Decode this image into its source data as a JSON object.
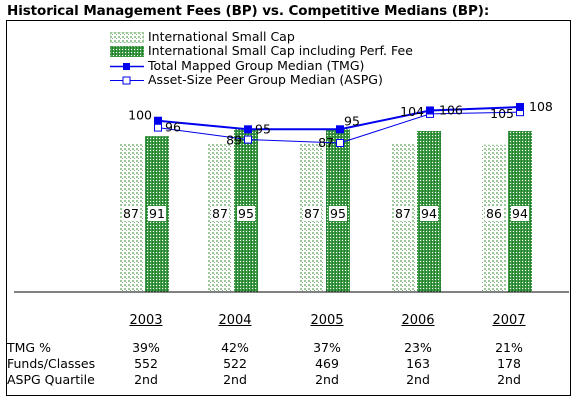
{
  "title": "Historical Management Fees (BP) vs. Competitive Medians (BP):",
  "legend": [
    {
      "label": "International Small Cap",
      "symbol": "pattern-light"
    },
    {
      "label": "International Small Cap including Perf. Fee",
      "symbol": "pattern-dark"
    },
    {
      "label": "Total Mapped Group Median (TMG)",
      "symbol": "line-filled"
    },
    {
      "label": "Asset-Size Peer Group Median (ASPG)",
      "symbol": "line-open"
    }
  ],
  "colors": {
    "bar_light": "#8fc28f",
    "bar_dark": "#2e8b3a",
    "line": "#0000ee"
  },
  "chart_data": {
    "type": "bar",
    "categories": [
      "2003",
      "2004",
      "2005",
      "2006",
      "2007"
    ],
    "series": [
      {
        "name": "International Small Cap",
        "kind": "bar",
        "values": [
          87,
          87,
          87,
          87,
          86
        ],
        "labels": [
          "87",
          "87",
          "87",
          "87",
          "86"
        ]
      },
      {
        "name": "International Small Cap including Perf. Fee",
        "kind": "bar",
        "values": [
          91,
          95,
          95,
          94,
          94
        ],
        "labels": [
          "91",
          "95",
          "95",
          "94",
          "94"
        ]
      },
      {
        "name": "Total Mapped Group Median (TMG)",
        "kind": "line",
        "values": [
          100,
          95,
          95,
          106,
          108
        ],
        "labels": [
          "100",
          "95",
          "95",
          "106",
          "108"
        ]
      },
      {
        "name": "Asset-Size Peer Group Median (ASPG)",
        "kind": "line",
        "values": [
          96,
          89,
          87,
          104,
          105
        ],
        "labels": [
          "96",
          "89",
          "87",
          "104",
          "105"
        ]
      }
    ],
    "ylim": [
      20,
      125
    ],
    "grid": false
  },
  "table": {
    "rows": [
      {
        "label": "TMG %",
        "values": [
          "39%",
          "42%",
          "37%",
          "23%",
          "21%"
        ]
      },
      {
        "label": "Funds/Classes",
        "values": [
          "552",
          "522",
          "469",
          "163",
          "178"
        ]
      },
      {
        "label": "ASPG Quartile",
        "values": [
          "2nd",
          "2nd",
          "2nd",
          "2nd",
          "2nd"
        ]
      }
    ]
  }
}
